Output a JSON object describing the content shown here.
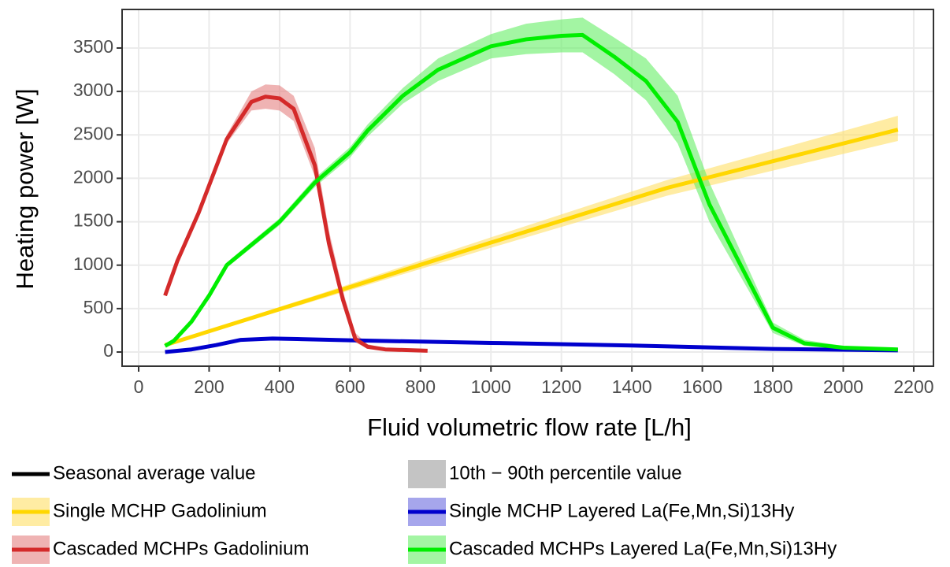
{
  "chart_data": {
    "type": "line",
    "x_label": "Fluid volumetric flow rate [L/h]",
    "y_label": "Heating power [W]",
    "xlim": [
      -47,
      2256
    ],
    "ylim": [
      -163,
      3944
    ],
    "xticks": [
      0,
      200,
      400,
      600,
      800,
      1000,
      1200,
      1400,
      1600,
      1800,
      2000,
      2200
    ],
    "yticks": [
      0,
      500,
      1000,
      1500,
      2000,
      2500,
      3000,
      3500
    ],
    "grid": true,
    "legend_notes": [
      {
        "text": "Seasonal average value",
        "color": "#000000"
      },
      {
        "text": "10th − 90th percentile value",
        "color": "#c4c4c4"
      }
    ],
    "series": [
      {
        "name": "Single MCHP Gadolinium",
        "color": "#ffd700",
        "band_color": "#ffe066",
        "x": [
          75,
          500,
          1000,
          1500,
          2155
        ],
        "values": [
          80,
          620,
          1260,
          1890,
          2560
        ],
        "lower": [
          70,
          590,
          1200,
          1800,
          2430
        ],
        "upper": [
          90,
          650,
          1320,
          1980,
          2720
        ]
      },
      {
        "name": "Single MCHP Layered La(Fe,Mn,Si)13Hy",
        "color": "#0000cd",
        "band_color": "#6b6bdf",
        "x": [
          75,
          150,
          220,
          290,
          380,
          450,
          600,
          800,
          1000,
          1400,
          1800,
          2155
        ],
        "values": [
          0,
          30,
          80,
          140,
          155,
          150,
          135,
          120,
          105,
          75,
          35,
          20
        ],
        "lower": [
          -5,
          25,
          74,
          133,
          147,
          142,
          128,
          113,
          99,
          70,
          31,
          16
        ],
        "upper": [
          5,
          35,
          86,
          147,
          163,
          158,
          142,
          127,
          111,
          80,
          39,
          24
        ]
      },
      {
        "name": "Cascaded MCHPs Gadolinium",
        "color": "#d42a2a",
        "band_color": "#e58080",
        "x": [
          75,
          110,
          170,
          250,
          320,
          360,
          400,
          440,
          500,
          540,
          580,
          615,
          650,
          700,
          820
        ],
        "values": [
          650,
          1050,
          1600,
          2450,
          2880,
          2940,
          2920,
          2800,
          2150,
          1250,
          600,
          150,
          60,
          30,
          15
        ],
        "lower": [
          640,
          1030,
          1570,
          2400,
          2780,
          2800,
          2780,
          2660,
          2020,
          1150,
          540,
          110,
          40,
          20,
          10
        ],
        "upper": [
          660,
          1070,
          1630,
          2500,
          3000,
          3080,
          3070,
          2950,
          2350,
          1400,
          700,
          220,
          90,
          45,
          20
        ]
      },
      {
        "name": "Cascaded MCHPs Layered La(Fe,Mn,Si)13Hy",
        "color": "#00ee00",
        "band_color": "#66ee66",
        "x": [
          75,
          100,
          150,
          200,
          250,
          400,
          500,
          600,
          650,
          750,
          850,
          1000,
          1100,
          1200,
          1260,
          1350,
          1440,
          1530,
          1620,
          1800,
          1890,
          2000,
          2155
        ],
        "values": [
          70,
          130,
          350,
          650,
          1000,
          1500,
          1950,
          2300,
          2550,
          2950,
          3250,
          3520,
          3600,
          3640,
          3650,
          3400,
          3120,
          2650,
          1700,
          280,
          100,
          50,
          30
        ],
        "lower": [
          60,
          120,
          330,
          620,
          970,
          1460,
          1900,
          2240,
          2480,
          2860,
          3120,
          3380,
          3430,
          3450,
          3450,
          3200,
          2900,
          2400,
          1500,
          220,
          70,
          35,
          20
        ],
        "upper": [
          80,
          140,
          370,
          680,
          1030,
          1540,
          2000,
          2360,
          2620,
          3040,
          3380,
          3660,
          3780,
          3830,
          3850,
          3620,
          3380,
          2950,
          1950,
          340,
          140,
          70,
          45
        ]
      }
    ]
  }
}
